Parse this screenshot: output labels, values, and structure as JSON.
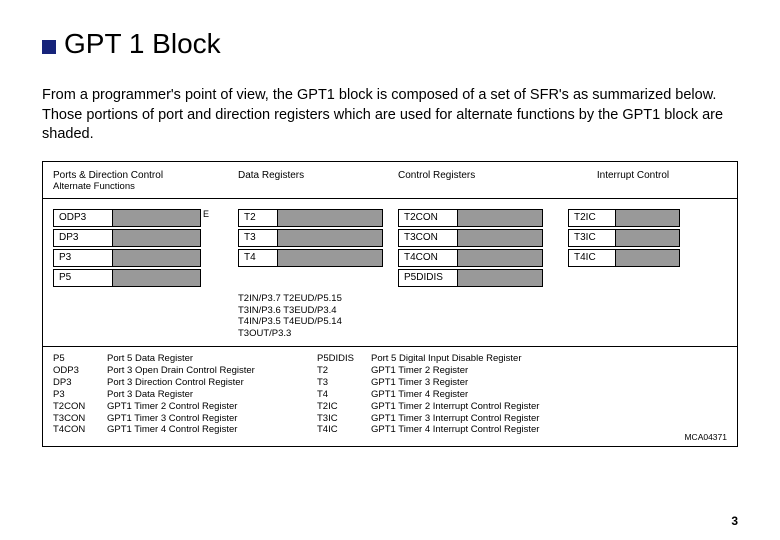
{
  "title": "GPT 1 Block",
  "intro": "From a programmer's point of view, the GPT1 block is composed of a set of SFR's as summarized below. Those portions of port and direction registers which are used for alternate functions by the GPT1 block are shaded.",
  "section_headers": {
    "ports": "Ports & Direction Control",
    "ports_sub": "Alternate Functions",
    "data": "Data Registers",
    "ctrl": "Control Registers",
    "int": "Interrupt Control"
  },
  "e_badge": "E",
  "ports_col": [
    "ODP3",
    "DP3",
    "P3",
    "P5"
  ],
  "data_col": [
    "T2",
    "T3",
    "T4"
  ],
  "ctrl_col": [
    "T2CON",
    "T3CON",
    "T4CON",
    "P5DIDIS"
  ],
  "int_col": [
    "T2IC",
    "T3IC",
    "T4IC"
  ],
  "port_map": [
    "T2IN/P3.7 T2EUD/P5.15",
    "T3IN/P3.6 T3EUD/P3.4",
    "T4IN/P3.5 T4EUD/P5.14",
    "T3OUT/P3.3"
  ],
  "legend_left": [
    [
      "P5",
      "Port 5 Data Register"
    ],
    [
      "ODP3",
      "Port 3 Open Drain Control Register"
    ],
    [
      "DP3",
      "Port 3 Direction Control Register"
    ],
    [
      "P3",
      "Port 3 Data Register"
    ],
    [
      "T2CON",
      "GPT1 Timer 2 Control Register"
    ],
    [
      "T3CON",
      "GPT1 Timer 3 Control Register"
    ],
    [
      "T4CON",
      "GPT1 Timer 4 Control Register"
    ]
  ],
  "legend_right": [
    [
      "P5DIDIS",
      "Port 5 Digital Input Disable Register"
    ],
    [
      "T2",
      "GPT1 Timer 2 Register"
    ],
    [
      "T3",
      "GPT1 Timer 3 Register"
    ],
    [
      "T4",
      "GPT1 Timer 4 Register"
    ],
    [
      "T2IC",
      "GPT1 Timer 2 Interrupt Control Register"
    ],
    [
      "T3IC",
      "GPT1 Timer 3 Interrupt Control Register"
    ],
    [
      "T4IC",
      "GPT1 Timer 4 Interrupt Control Register"
    ]
  ],
  "mca": "MCA04371",
  "page": "3",
  "style": {
    "shade_color": "#999999",
    "border_color": "#000000",
    "accent_square": "#16237a",
    "title_fontsize": 28,
    "body_fontsize": 14.5,
    "diagram_fontsize": 10,
    "legend_fontsize": 9.5
  }
}
